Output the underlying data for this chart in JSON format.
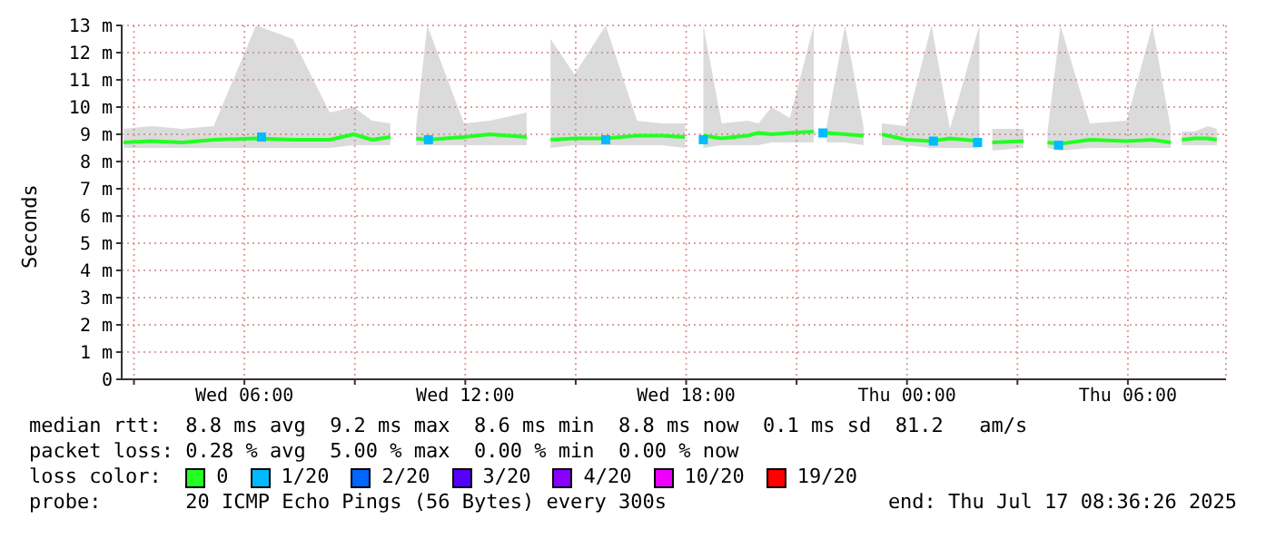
{
  "chart_data": {
    "type": "line",
    "ylabel": "Seconds",
    "legend_title": "loss color:",
    "legend": "bottom",
    "grid": true,
    "line_style": "solid",
    "xlim": [
      "2025-07-16T02:40",
      "2025-07-17T08:40"
    ],
    "xticks": [
      {
        "value": "2025-07-16T03:00",
        "label": null
      },
      {
        "value": "2025-07-16T06:00",
        "label": "Wed 06:00"
      },
      {
        "value": "2025-07-16T09:00",
        "label": null
      },
      {
        "value": "2025-07-16T12:00",
        "label": "Wed 12:00"
      },
      {
        "value": "2025-07-16T15:00",
        "label": null
      },
      {
        "value": "2025-07-16T18:00",
        "label": "Wed 18:00"
      },
      {
        "value": "2025-07-16T21:00",
        "label": null
      },
      {
        "value": "2025-07-17T00:00",
        "label": "Thu 00:00"
      },
      {
        "value": "2025-07-17T03:00",
        "label": null
      },
      {
        "value": "2025-07-17T06:00",
        "label": "Thu 06:00"
      }
    ],
    "ylim": [
      0,
      13
    ],
    "yticks": [
      {
        "value": 0,
        "label": "0"
      },
      {
        "value": 1,
        "label": "1 m"
      },
      {
        "value": 2,
        "label": "2 m"
      },
      {
        "value": 3,
        "label": "3 m"
      },
      {
        "value": 4,
        "label": "4 m"
      },
      {
        "value": 5,
        "label": "5 m"
      },
      {
        "value": 6,
        "label": "6 m"
      },
      {
        "value": 7,
        "label": "7 m"
      },
      {
        "value": 8,
        "label": "8 m"
      },
      {
        "value": 9,
        "label": "9 m"
      },
      {
        "value": 10,
        "label": "10 m"
      },
      {
        "value": 11,
        "label": "11 m"
      },
      {
        "value": 12,
        "label": "12 m"
      },
      {
        "value": 13,
        "label": "13 m"
      }
    ],
    "series": [
      {
        "name": "0",
        "color": "#22ff22",
        "x": [
          "2025-07-16T02:43",
          "2025-07-16T03:28",
          "2025-07-16T04:19",
          "2025-07-16T05:10",
          "2025-07-16T06:19",
          "2025-07-16T07:19",
          "2025-07-16T08:19",
          "2025-07-16T08:58",
          "2025-07-16T09:28",
          "2025-07-16T09:58",
          "2025-07-16T10:10",
          "2025-07-16T10:40",
          "2025-07-16T10:58",
          "2025-07-16T11:58",
          "2025-07-16T12:40",
          "2025-07-16T13:40",
          "2025-07-16T13:58",
          "2025-07-16T14:19",
          "2025-07-16T14:58",
          "2025-07-16T15:49",
          "2025-07-16T16:40",
          "2025-07-16T17:19",
          "2025-07-16T17:58",
          "2025-07-16T18:07",
          "2025-07-16T18:28",
          "2025-07-16T18:58",
          "2025-07-16T19:40",
          "2025-07-16T19:58",
          "2025-07-16T20:19",
          "2025-07-16T20:49",
          "2025-07-16T21:28",
          "2025-07-16T21:37",
          "2025-07-16T21:49",
          "2025-07-16T22:19",
          "2025-07-16T22:49",
          "2025-07-16T23:01",
          "2025-07-16T23:19",
          "2025-07-16T23:58",
          "2025-07-17T00:40",
          "2025-07-17T01:10",
          "2025-07-17T01:58",
          "2025-07-17T02:07",
          "2025-07-17T02:19",
          "2025-07-17T03:10",
          "2025-07-17T03:25",
          "2025-07-17T03:49",
          "2025-07-17T04:10",
          "2025-07-17T04:58",
          "2025-07-17T05:58",
          "2025-07-17T06:40",
          "2025-07-17T07:10",
          "2025-07-17T07:19",
          "2025-07-17T07:28",
          "2025-07-17T07:49",
          "2025-07-17T08:10",
          "2025-07-17T08:25"
        ],
        "values": [
          8.7,
          8.75,
          8.7,
          8.8,
          8.85,
          8.8,
          8.8,
          9.0,
          8.8,
          8.9,
          null,
          8.85,
          8.8,
          8.9,
          9.0,
          8.9,
          null,
          8.8,
          8.85,
          8.85,
          8.95,
          8.95,
          8.9,
          null,
          8.95,
          8.85,
          8.95,
          9.05,
          9.0,
          9.05,
          9.1,
          null,
          9.05,
          9.0,
          8.95,
          null,
          9.0,
          8.8,
          8.75,
          8.85,
          8.75,
          null,
          8.7,
          8.75,
          null,
          8.7,
          8.65,
          8.8,
          8.75,
          8.8,
          8.7,
          null,
          8.8,
          8.85,
          8.85,
          8.8
        ],
        "lower": [
          8.5,
          8.5,
          8.5,
          8.5,
          8.5,
          8.5,
          8.5,
          8.6,
          8.6,
          8.6,
          null,
          8.6,
          8.6,
          8.6,
          8.6,
          8.6,
          null,
          8.5,
          8.6,
          8.6,
          8.6,
          8.6,
          8.5,
          null,
          8.5,
          8.6,
          8.6,
          8.6,
          8.7,
          8.7,
          8.7,
          null,
          8.7,
          8.7,
          8.6,
          null,
          8.6,
          8.6,
          8.5,
          8.5,
          8.5,
          null,
          8.4,
          8.5,
          null,
          8.5,
          8.4,
          8.5,
          8.5,
          8.5,
          8.5,
          null,
          8.6,
          8.6,
          8.6,
          8.6
        ],
        "upper": [
          9.2,
          9.3,
          9.2,
          9.3,
          13.0,
          12.5,
          9.8,
          10.0,
          9.5,
          9.4,
          null,
          9.3,
          13.0,
          9.4,
          9.5,
          9.8,
          null,
          12.5,
          11.2,
          13.0,
          9.5,
          9.4,
          9.4,
          null,
          13.0,
          9.4,
          9.5,
          9.4,
          10.0,
          9.6,
          13.0,
          null,
          9.3,
          13.0,
          9.3,
          null,
          9.4,
          9.3,
          13.0,
          9.2,
          13.0,
          null,
          9.2,
          9.2,
          null,
          9.1,
          13.0,
          9.4,
          9.5,
          13.0,
          9.2,
          null,
          9.1,
          9.1,
          9.3,
          9.2
        ]
      },
      {
        "name": "1/20",
        "type": "scatter",
        "color": "#00bbff",
        "x": [
          "2025-07-16T06:28",
          "2025-07-16T11:00",
          "2025-07-16T15:49",
          "2025-07-16T18:28",
          "2025-07-16T21:43",
          "2025-07-17T00:43",
          "2025-07-17T01:55",
          "2025-07-17T04:07"
        ],
        "values": [
          8.9,
          8.8,
          8.8,
          8.8,
          9.05,
          8.75,
          8.7,
          8.6
        ]
      },
      {
        "name": "2/20",
        "color": "#0066ff"
      },
      {
        "name": "3/20",
        "color": "#5500ff"
      },
      {
        "name": "4/20",
        "color": "#8800ff"
      },
      {
        "name": "10/20",
        "color": "#ee00ff"
      },
      {
        "name": "19/20",
        "color": "#ff0000"
      }
    ],
    "annotations": [
      "median rtt:  8.8 ms avg  9.2 ms max  8.6 ms min  8.8 ms now  0.1 ms sd  81.2   am/s",
      "packet loss: 0.28 % avg  5.00 % max  0.00 % min  0.00 % now",
      "probe:       20 ICMP Echo Pings (56 Bytes) every 300s",
      "end: Thu Jul 17 08:36:26 2025"
    ]
  }
}
